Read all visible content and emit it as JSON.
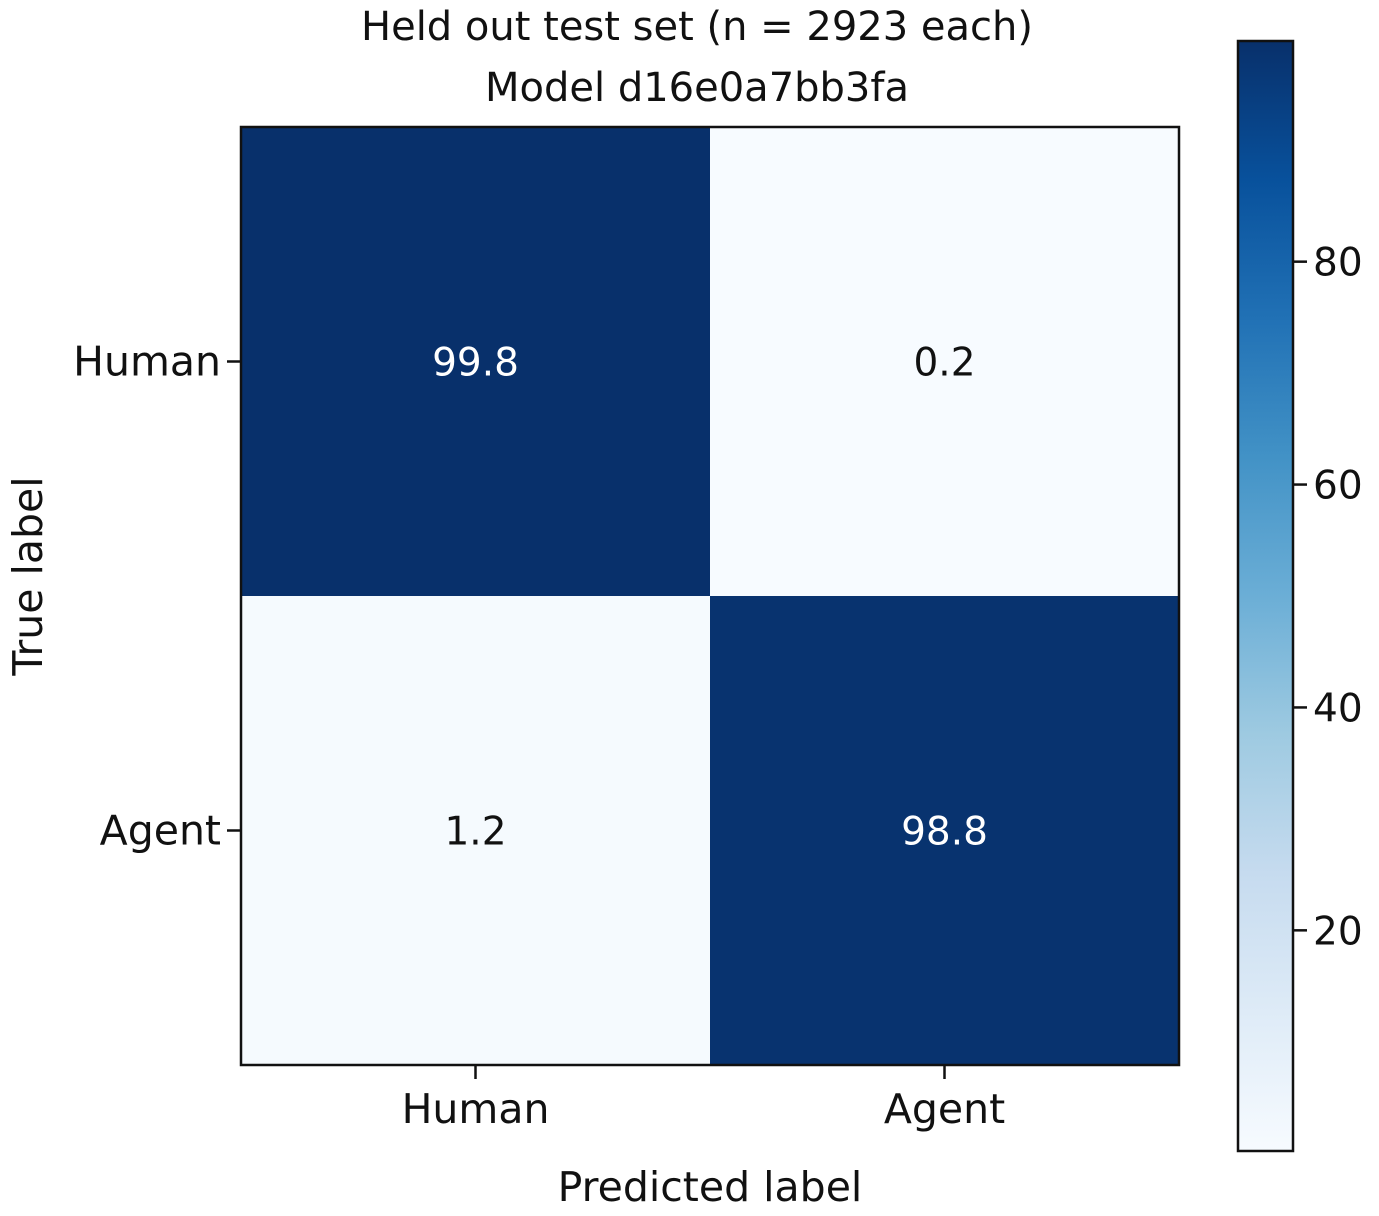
{
  "chart_data": {
    "type": "heatmap",
    "title": "Held out test set (n = 2923 each)",
    "subtitle": "Model d16e0a7bb3fa",
    "xlabel": "Predicted label",
    "ylabel": "True label",
    "x_categories": [
      "Human",
      "Agent"
    ],
    "y_categories": [
      "Human",
      "Agent"
    ],
    "values": [
      [
        99.8,
        0.2
      ],
      [
        1.2,
        98.8
      ]
    ],
    "value_labels": [
      [
        "99.8",
        "0.2"
      ],
      [
        "1.2",
        "98.8"
      ]
    ],
    "colormap": "Blues",
    "colorbar": {
      "range": [
        0.2,
        99.8
      ],
      "ticks": [
        20,
        40,
        60,
        80
      ]
    },
    "colors": {
      "low": "#f7fbff",
      "high": "#08306b",
      "text_on_dark": "#ffffff",
      "text_on_light": "#111111"
    }
  }
}
